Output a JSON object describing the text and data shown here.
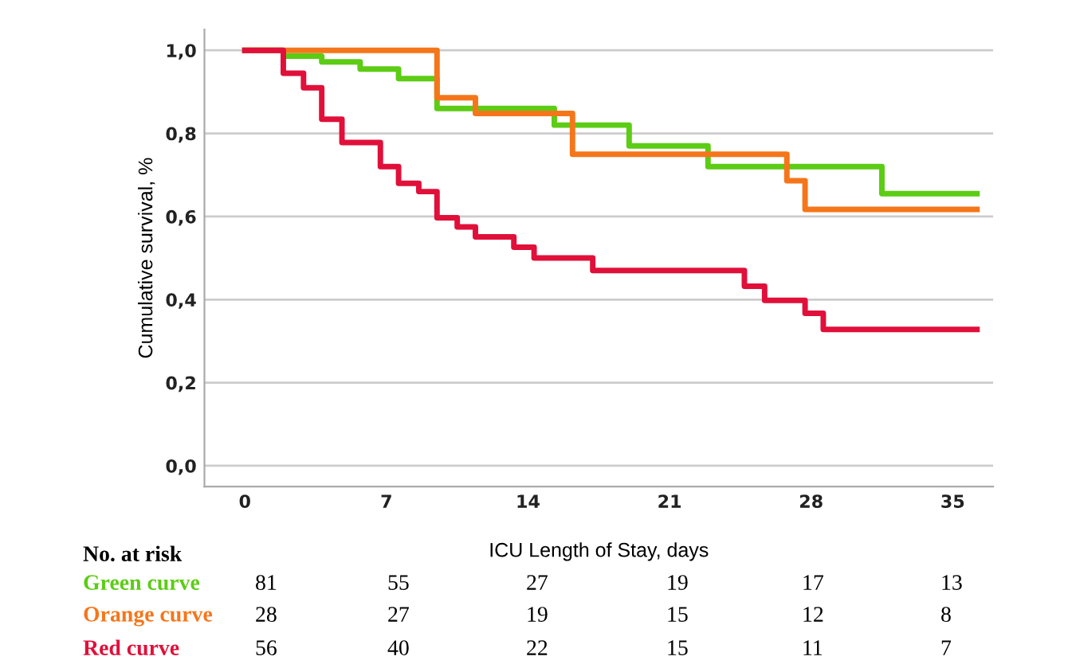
{
  "chart_data": {
    "type": "step",
    "xlabel": "ICU Length of Stay, days",
    "ylabel": "Cumulative survival, %",
    "xlim": [
      -2,
      37
    ],
    "xticks": [
      0,
      7,
      14,
      21,
      28,
      35
    ],
    "ylim": [
      -0.05,
      1.05
    ],
    "yticks": [
      {
        "value": 0,
        "label": "0,0"
      },
      {
        "value": 0.2,
        "label": "0,2"
      },
      {
        "value": 0.4,
        "label": "0,4"
      },
      {
        "value": 0.6,
        "label": "0,6"
      },
      {
        "value": 0.8,
        "label": "0,8"
      },
      {
        "value": 1,
        "label": "1,0"
      }
    ],
    "grid": "y",
    "legend": false,
    "series": [
      {
        "name": "Green curve",
        "color": "#5ccc14",
        "x": [
          0,
          1.9,
          3.8,
          5.7,
          7.6,
          9.5,
          15.3,
          19,
          22.9,
          31.5,
          36.2
        ],
        "values": [
          1,
          0.986,
          0.972,
          0.955,
          0.932,
          0.86,
          0.82,
          0.77,
          0.72,
          0.655,
          0.655
        ]
      },
      {
        "name": "Orange curve",
        "color": "#f5761a",
        "x": [
          0,
          9.5,
          11.4,
          16.2,
          26.8,
          27.7,
          36.2
        ],
        "values": [
          1,
          0.886,
          0.848,
          0.75,
          0.686,
          0.617,
          0.617
        ]
      },
      {
        "name": "Red curve",
        "color": "#e0103a",
        "x": [
          0,
          1.9,
          2.9,
          3.8,
          4.8,
          6.7,
          7.6,
          8.6,
          9.5,
          10.5,
          11.4,
          13.3,
          14.3,
          17.2,
          24.7,
          25.7,
          27.7,
          28.6,
          36.2
        ],
        "values": [
          1,
          0.945,
          0.91,
          0.834,
          0.778,
          0.72,
          0.68,
          0.66,
          0.597,
          0.575,
          0.551,
          0.526,
          0.5,
          0.47,
          0.432,
          0.398,
          0.367,
          0.328,
          0.328
        ]
      }
    ],
    "annotations": [
      "No. at risk",
      "81",
      "55",
      "27",
      "19",
      "17",
      "13",
      "28",
      "27",
      "19",
      "15",
      "12",
      "8",
      "56",
      "40",
      "22",
      "15",
      "11",
      "7"
    ]
  }
}
